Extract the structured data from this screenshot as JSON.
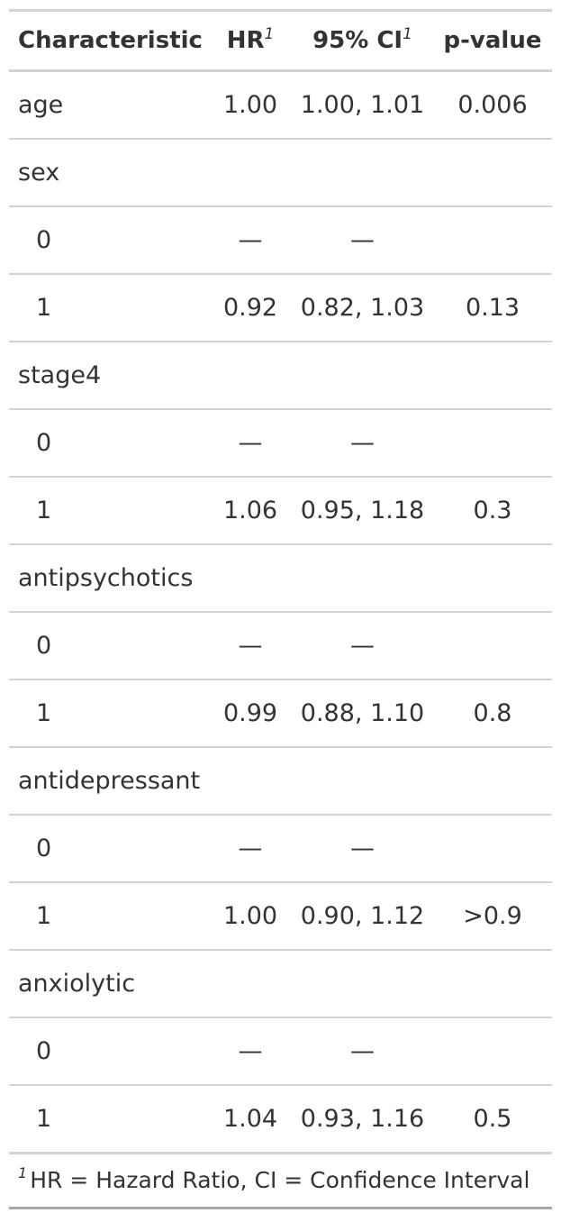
{
  "header": {
    "characteristic": "Characteristic",
    "hr": "HR",
    "ci": "95% CI",
    "pvalue": "p-value",
    "footnote_marker": "1"
  },
  "rows": [
    {
      "label": "age",
      "hr": "1.00",
      "ci": "1.00, 1.01",
      "p": "0.006"
    },
    {
      "label": "sex",
      "hr": "",
      "ci": "",
      "p": ""
    },
    {
      "label": "0",
      "hr": "—",
      "ci": "—",
      "p": ""
    },
    {
      "label": "1",
      "hr": "0.92",
      "ci": "0.82, 1.03",
      "p": "0.13"
    },
    {
      "label": "stage4",
      "hr": "",
      "ci": "",
      "p": ""
    },
    {
      "label": "0",
      "hr": "—",
      "ci": "—",
      "p": ""
    },
    {
      "label": "1",
      "hr": "1.06",
      "ci": "0.95, 1.18",
      "p": "0.3"
    },
    {
      "label": "antipsychotics",
      "hr": "",
      "ci": "",
      "p": ""
    },
    {
      "label": "0",
      "hr": "—",
      "ci": "—",
      "p": ""
    },
    {
      "label": "1",
      "hr": "0.99",
      "ci": "0.88, 1.10",
      "p": "0.8"
    },
    {
      "label": "antidepressant",
      "hr": "",
      "ci": "",
      "p": ""
    },
    {
      "label": "0",
      "hr": "—",
      "ci": "—",
      "p": ""
    },
    {
      "label": "1",
      "hr": "1.00",
      "ci": "0.90, 1.12",
      "p": ">0.9"
    },
    {
      "label": "anxiolytic",
      "hr": "",
      "ci": "",
      "p": ""
    },
    {
      "label": "0",
      "hr": "—",
      "ci": "—",
      "p": ""
    },
    {
      "label": "1",
      "hr": "1.04",
      "ci": "0.93, 1.16",
      "p": "0.5"
    }
  ],
  "footnote": {
    "marker": "1",
    "text": "HR = Hazard Ratio, CI = Confidence Interval"
  }
}
